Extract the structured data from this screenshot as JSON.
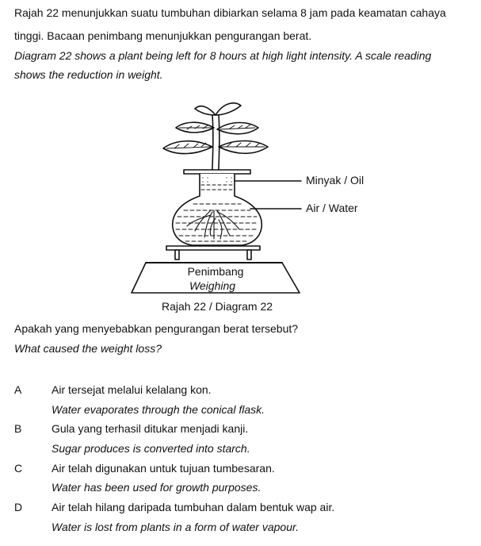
{
  "intro": {
    "ms_line1": "Rajah 22 menunjukkan suatu tumbuhan dibiarkan selama 8 jam pada keamatan cahaya",
    "ms_line2": "tinggi. Bacaan penimbang menunjukkan pengurangan berat.",
    "en_line1": "Diagram 22 shows a plant being left for 8 hours at high light intensity. A scale reading",
    "en_line2": "shows the reduction in weight."
  },
  "diagram": {
    "label_oil": "Minyak / Oil",
    "label_water": "Air / Water",
    "scale_ms": "Penimbang",
    "scale_en": "Weighing",
    "caption": "Rajah 22 / Diagram 22"
  },
  "question": {
    "ms": "Apakah yang menyebabkan pengurangan berat tersebut?",
    "en": "What caused the weight loss?"
  },
  "options": [
    {
      "letter": "A",
      "ms": "Air tersejat melalui kelalang kon.",
      "en": "Water evaporates through the conical flask."
    },
    {
      "letter": "B",
      "ms": "Gula yang terhasil ditukar menjadi kanji.",
      "en": "Sugar produces is converted into starch."
    },
    {
      "letter": "C",
      "ms": "Air telah digunakan untuk tujuan tumbesaran.",
      "en": "Water has been used for growth purposes."
    },
    {
      "letter": "D",
      "ms": "Air telah hilang daripada tumbuhan dalam bentuk wap air.",
      "en": "Water is lost from plants in a form of water vapour."
    }
  ]
}
